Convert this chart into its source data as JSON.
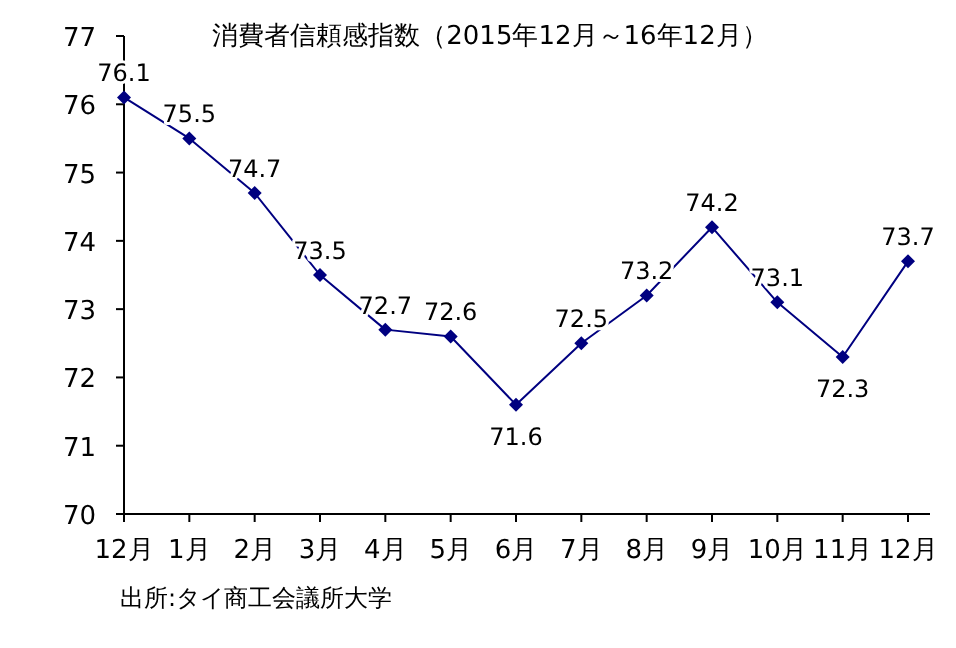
{
  "chart_data": {
    "type": "line",
    "title": "消費者信頼感指数（2015年12月～16年12月）",
    "categories": [
      "12月",
      "1月",
      "2月",
      "3月",
      "4月",
      "5月",
      "6月",
      "7月",
      "8月",
      "9月",
      "10月",
      "11月",
      "12月"
    ],
    "series": [
      {
        "color": "#000080",
        "values": [
          76.1,
          75.5,
          74.7,
          73.5,
          72.7,
          72.6,
          71.6,
          72.5,
          73.2,
          74.2,
          73.1,
          72.3,
          73.7
        ]
      }
    ],
    "ylim": [
      70,
      77
    ],
    "yticks": [
      70,
      71,
      72,
      73,
      74,
      75,
      76,
      77
    ],
    "marker": "diamond",
    "line_style": "solid",
    "data_labels": true,
    "grid": false,
    "annotations": [
      "出所:タイ商工会議所大学"
    ]
  }
}
